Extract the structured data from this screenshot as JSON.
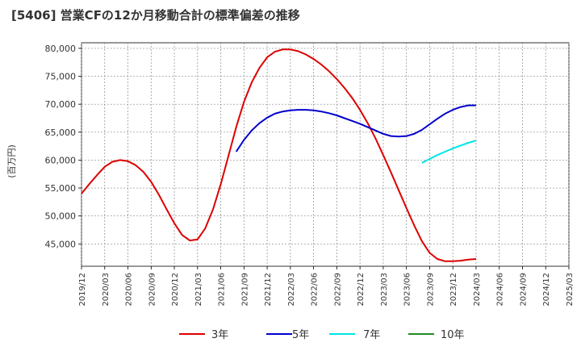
{
  "chart_data": {
    "type": "line",
    "title": "[5406]  営業CFの12か月移動合計の標準偏差の推移",
    "ylabel": "(百万円)",
    "xlabel": "",
    "ylim": [
      41000,
      81000
    ],
    "yticks": [
      45000,
      50000,
      55000,
      60000,
      65000,
      70000,
      75000,
      80000
    ],
    "ytick_labels": [
      "45,000",
      "50,000",
      "55,000",
      "60,000",
      "65,000",
      "70,000",
      "75,000",
      "80,000"
    ],
    "xticks": [
      "2019/12",
      "2020/03",
      "2020/06",
      "2020/09",
      "2020/12",
      "2021/03",
      "2021/06",
      "2021/09",
      "2021/12",
      "2022/03",
      "2022/06",
      "2022/09",
      "2022/12",
      "2023/03",
      "2023/06",
      "2023/09",
      "2023/12",
      "2024/03",
      "2024/06",
      "2024/09",
      "2024/12",
      "2025/03"
    ],
    "grid": true,
    "legend_position": "bottom",
    "series": [
      {
        "name": "3年",
        "color": "#dd0000",
        "points": [
          [
            "2019/12",
            54000
          ],
          [
            "2020/01",
            55700
          ],
          [
            "2020/02",
            57300
          ],
          [
            "2020/03",
            58800
          ],
          [
            "2020/04",
            59700
          ],
          [
            "2020/05",
            60000
          ],
          [
            "2020/06",
            59800
          ],
          [
            "2020/07",
            59100
          ],
          [
            "2020/08",
            57900
          ],
          [
            "2020/09",
            56100
          ],
          [
            "2020/10",
            53800
          ],
          [
            "2020/11",
            51200
          ],
          [
            "2020/12",
            48700
          ],
          [
            "2021/01",
            46600
          ],
          [
            "2021/02",
            45600
          ],
          [
            "2021/03",
            45800
          ],
          [
            "2021/04",
            47800
          ],
          [
            "2021/05",
            51200
          ],
          [
            "2021/06",
            55700
          ],
          [
            "2021/07",
            60800
          ],
          [
            "2021/08",
            65900
          ],
          [
            "2021/09",
            70400
          ],
          [
            "2021/10",
            73900
          ],
          [
            "2021/11",
            76500
          ],
          [
            "2021/12",
            78400
          ],
          [
            "2022/01",
            79400
          ],
          [
            "2022/02",
            79800
          ],
          [
            "2022/03",
            79800
          ],
          [
            "2022/04",
            79500
          ],
          [
            "2022/05",
            78900
          ],
          [
            "2022/06",
            78100
          ],
          [
            "2022/07",
            77100
          ],
          [
            "2022/08",
            75900
          ],
          [
            "2022/09",
            74500
          ],
          [
            "2022/10",
            72900
          ],
          [
            "2022/11",
            71100
          ],
          [
            "2022/12",
            69000
          ],
          [
            "2023/01",
            66600
          ],
          [
            "2023/02",
            63900
          ],
          [
            "2023/03",
            60900
          ],
          [
            "2023/04",
            57800
          ],
          [
            "2023/05",
            54600
          ],
          [
            "2023/06",
            51400
          ],
          [
            "2023/07",
            48300
          ],
          [
            "2023/08",
            45500
          ],
          [
            "2023/09",
            43400
          ],
          [
            "2023/10",
            42300
          ],
          [
            "2023/11",
            41900
          ],
          [
            "2023/12",
            41900
          ],
          [
            "2024/01",
            42000
          ],
          [
            "2024/02",
            42200
          ],
          [
            "2024/03",
            42300
          ]
        ]
      },
      {
        "name": "5年",
        "color": "#0000cc",
        "points": [
          [
            "2021/08",
            61500
          ],
          [
            "2021/09",
            63600
          ],
          [
            "2021/10",
            65300
          ],
          [
            "2021/11",
            66600
          ],
          [
            "2021/12",
            67600
          ],
          [
            "2022/01",
            68300
          ],
          [
            "2022/02",
            68700
          ],
          [
            "2022/03",
            68900
          ],
          [
            "2022/04",
            69000
          ],
          [
            "2022/05",
            69000
          ],
          [
            "2022/06",
            68900
          ],
          [
            "2022/07",
            68700
          ],
          [
            "2022/08",
            68400
          ],
          [
            "2022/09",
            68000
          ],
          [
            "2022/10",
            67500
          ],
          [
            "2022/11",
            67000
          ],
          [
            "2022/12",
            66500
          ],
          [
            "2023/01",
            65900
          ],
          [
            "2023/02",
            65300
          ],
          [
            "2023/03",
            64700
          ],
          [
            "2023/04",
            64300
          ],
          [
            "2023/05",
            64200
          ],
          [
            "2023/06",
            64300
          ],
          [
            "2023/07",
            64700
          ],
          [
            "2023/08",
            65400
          ],
          [
            "2023/09",
            66400
          ],
          [
            "2023/10",
            67400
          ],
          [
            "2023/11",
            68300
          ],
          [
            "2023/12",
            69000
          ],
          [
            "2024/01",
            69500
          ],
          [
            "2024/02",
            69800
          ],
          [
            "2024/03",
            69800
          ]
        ]
      },
      {
        "name": "7年",
        "color": "#00e5e5",
        "points": [
          [
            "2023/08",
            59500
          ],
          [
            "2023/09",
            60200
          ],
          [
            "2023/10",
            60900
          ],
          [
            "2023/11",
            61500
          ],
          [
            "2023/12",
            62100
          ],
          [
            "2024/01",
            62600
          ],
          [
            "2024/02",
            63100
          ],
          [
            "2024/03",
            63500
          ]
        ]
      },
      {
        "name": "10年",
        "color": "#228b22",
        "points": []
      }
    ]
  }
}
